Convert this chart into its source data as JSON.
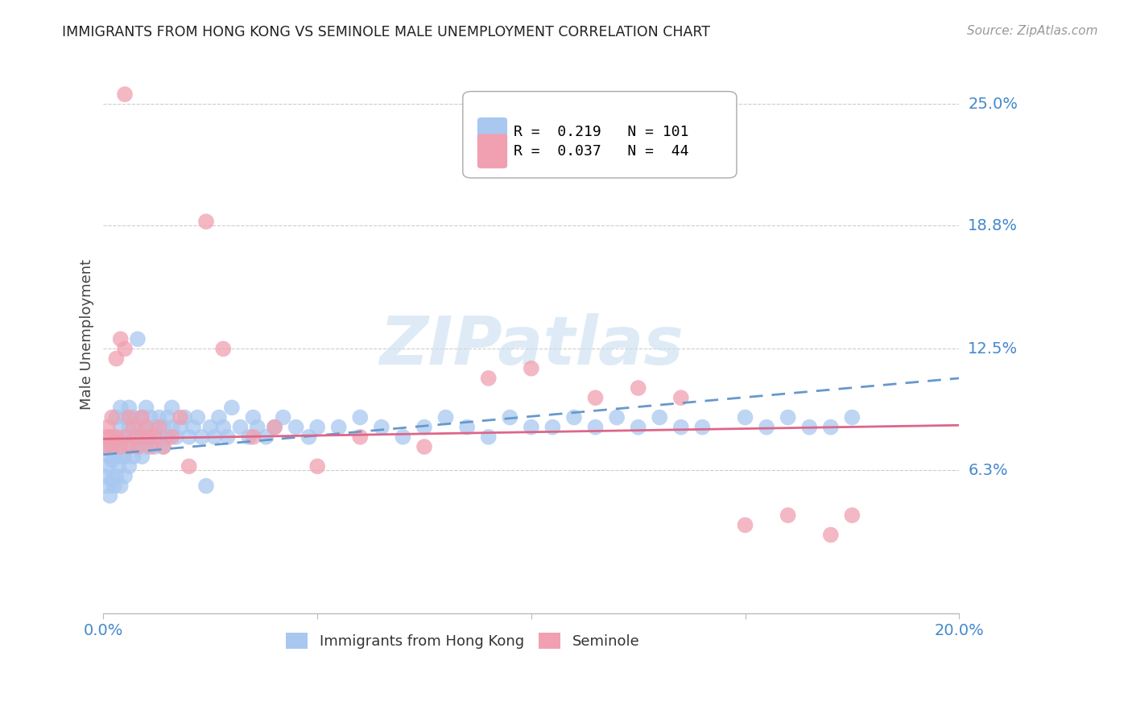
{
  "title": "IMMIGRANTS FROM HONG KONG VS SEMINOLE MALE UNEMPLOYMENT CORRELATION CHART",
  "source": "Source: ZipAtlas.com",
  "ylabel": "Male Unemployment",
  "ytick_labels": [
    "25.0%",
    "18.8%",
    "12.5%",
    "6.3%"
  ],
  "ytick_values": [
    0.25,
    0.188,
    0.125,
    0.063
  ],
  "xmin": 0.0,
  "xmax": 0.2,
  "ymin": -0.01,
  "ymax": 0.275,
  "color_blue": "#a8c8f0",
  "color_pink": "#f0a0b0",
  "watermark": "ZIPatlas",
  "blue_line_x": [
    0.0,
    0.2
  ],
  "blue_line_y": [
    0.071,
    0.11
  ],
  "pink_line_x": [
    0.0,
    0.2
  ],
  "pink_line_y": [
    0.079,
    0.086
  ],
  "blue_scatter_x": [
    0.0005,
    0.001,
    0.001,
    0.001,
    0.0015,
    0.0015,
    0.002,
    0.002,
    0.002,
    0.0025,
    0.0025,
    0.003,
    0.003,
    0.003,
    0.003,
    0.0035,
    0.004,
    0.004,
    0.004,
    0.004,
    0.0045,
    0.005,
    0.005,
    0.005,
    0.005,
    0.006,
    0.006,
    0.006,
    0.006,
    0.007,
    0.007,
    0.007,
    0.008,
    0.008,
    0.008,
    0.009,
    0.009,
    0.009,
    0.01,
    0.01,
    0.01,
    0.011,
    0.011,
    0.012,
    0.012,
    0.013,
    0.013,
    0.014,
    0.014,
    0.015,
    0.015,
    0.016,
    0.016,
    0.017,
    0.018,
    0.019,
    0.02,
    0.021,
    0.022,
    0.023,
    0.024,
    0.025,
    0.026,
    0.027,
    0.028,
    0.029,
    0.03,
    0.032,
    0.034,
    0.035,
    0.036,
    0.038,
    0.04,
    0.042,
    0.045,
    0.048,
    0.05,
    0.055,
    0.06,
    0.065,
    0.07,
    0.075,
    0.08,
    0.085,
    0.09,
    0.095,
    0.1,
    0.105,
    0.11,
    0.115,
    0.12,
    0.125,
    0.13,
    0.135,
    0.14,
    0.15,
    0.155,
    0.16,
    0.165,
    0.17,
    0.175
  ],
  "blue_scatter_y": [
    0.06,
    0.055,
    0.065,
    0.075,
    0.05,
    0.07,
    0.058,
    0.068,
    0.078,
    0.055,
    0.075,
    0.06,
    0.07,
    0.08,
    0.09,
    0.065,
    0.055,
    0.075,
    0.085,
    0.095,
    0.07,
    0.06,
    0.07,
    0.08,
    0.09,
    0.065,
    0.075,
    0.085,
    0.095,
    0.07,
    0.08,
    0.09,
    0.075,
    0.085,
    0.13,
    0.07,
    0.08,
    0.09,
    0.075,
    0.085,
    0.095,
    0.08,
    0.09,
    0.075,
    0.085,
    0.08,
    0.09,
    0.075,
    0.085,
    0.08,
    0.09,
    0.085,
    0.095,
    0.08,
    0.085,
    0.09,
    0.08,
    0.085,
    0.09,
    0.08,
    0.055,
    0.085,
    0.08,
    0.09,
    0.085,
    0.08,
    0.095,
    0.085,
    0.08,
    0.09,
    0.085,
    0.08,
    0.085,
    0.09,
    0.085,
    0.08,
    0.085,
    0.085,
    0.09,
    0.085,
    0.08,
    0.085,
    0.09,
    0.085,
    0.08,
    0.09,
    0.085,
    0.085,
    0.09,
    0.085,
    0.09,
    0.085,
    0.09,
    0.085,
    0.085,
    0.09,
    0.085,
    0.09,
    0.085,
    0.085,
    0.09
  ],
  "pink_scatter_x": [
    0.0005,
    0.001,
    0.001,
    0.0015,
    0.002,
    0.002,
    0.003,
    0.003,
    0.004,
    0.004,
    0.005,
    0.005,
    0.006,
    0.006,
    0.007,
    0.008,
    0.008,
    0.009,
    0.01,
    0.01,
    0.011,
    0.012,
    0.013,
    0.014,
    0.016,
    0.018,
    0.024,
    0.028,
    0.035,
    0.04,
    0.05,
    0.06,
    0.075,
    0.09,
    0.1,
    0.115,
    0.125,
    0.135,
    0.15,
    0.16,
    0.17,
    0.175,
    0.005,
    0.02
  ],
  "pink_scatter_y": [
    0.075,
    0.08,
    0.085,
    0.08,
    0.075,
    0.09,
    0.08,
    0.12,
    0.075,
    0.13,
    0.125,
    0.08,
    0.075,
    0.09,
    0.085,
    0.08,
    0.075,
    0.09,
    0.08,
    0.085,
    0.075,
    0.08,
    0.085,
    0.075,
    0.08,
    0.09,
    0.19,
    0.125,
    0.08,
    0.085,
    0.065,
    0.08,
    0.075,
    0.11,
    0.115,
    0.1,
    0.105,
    0.1,
    0.035,
    0.04,
    0.03,
    0.04,
    0.255,
    0.065
  ]
}
